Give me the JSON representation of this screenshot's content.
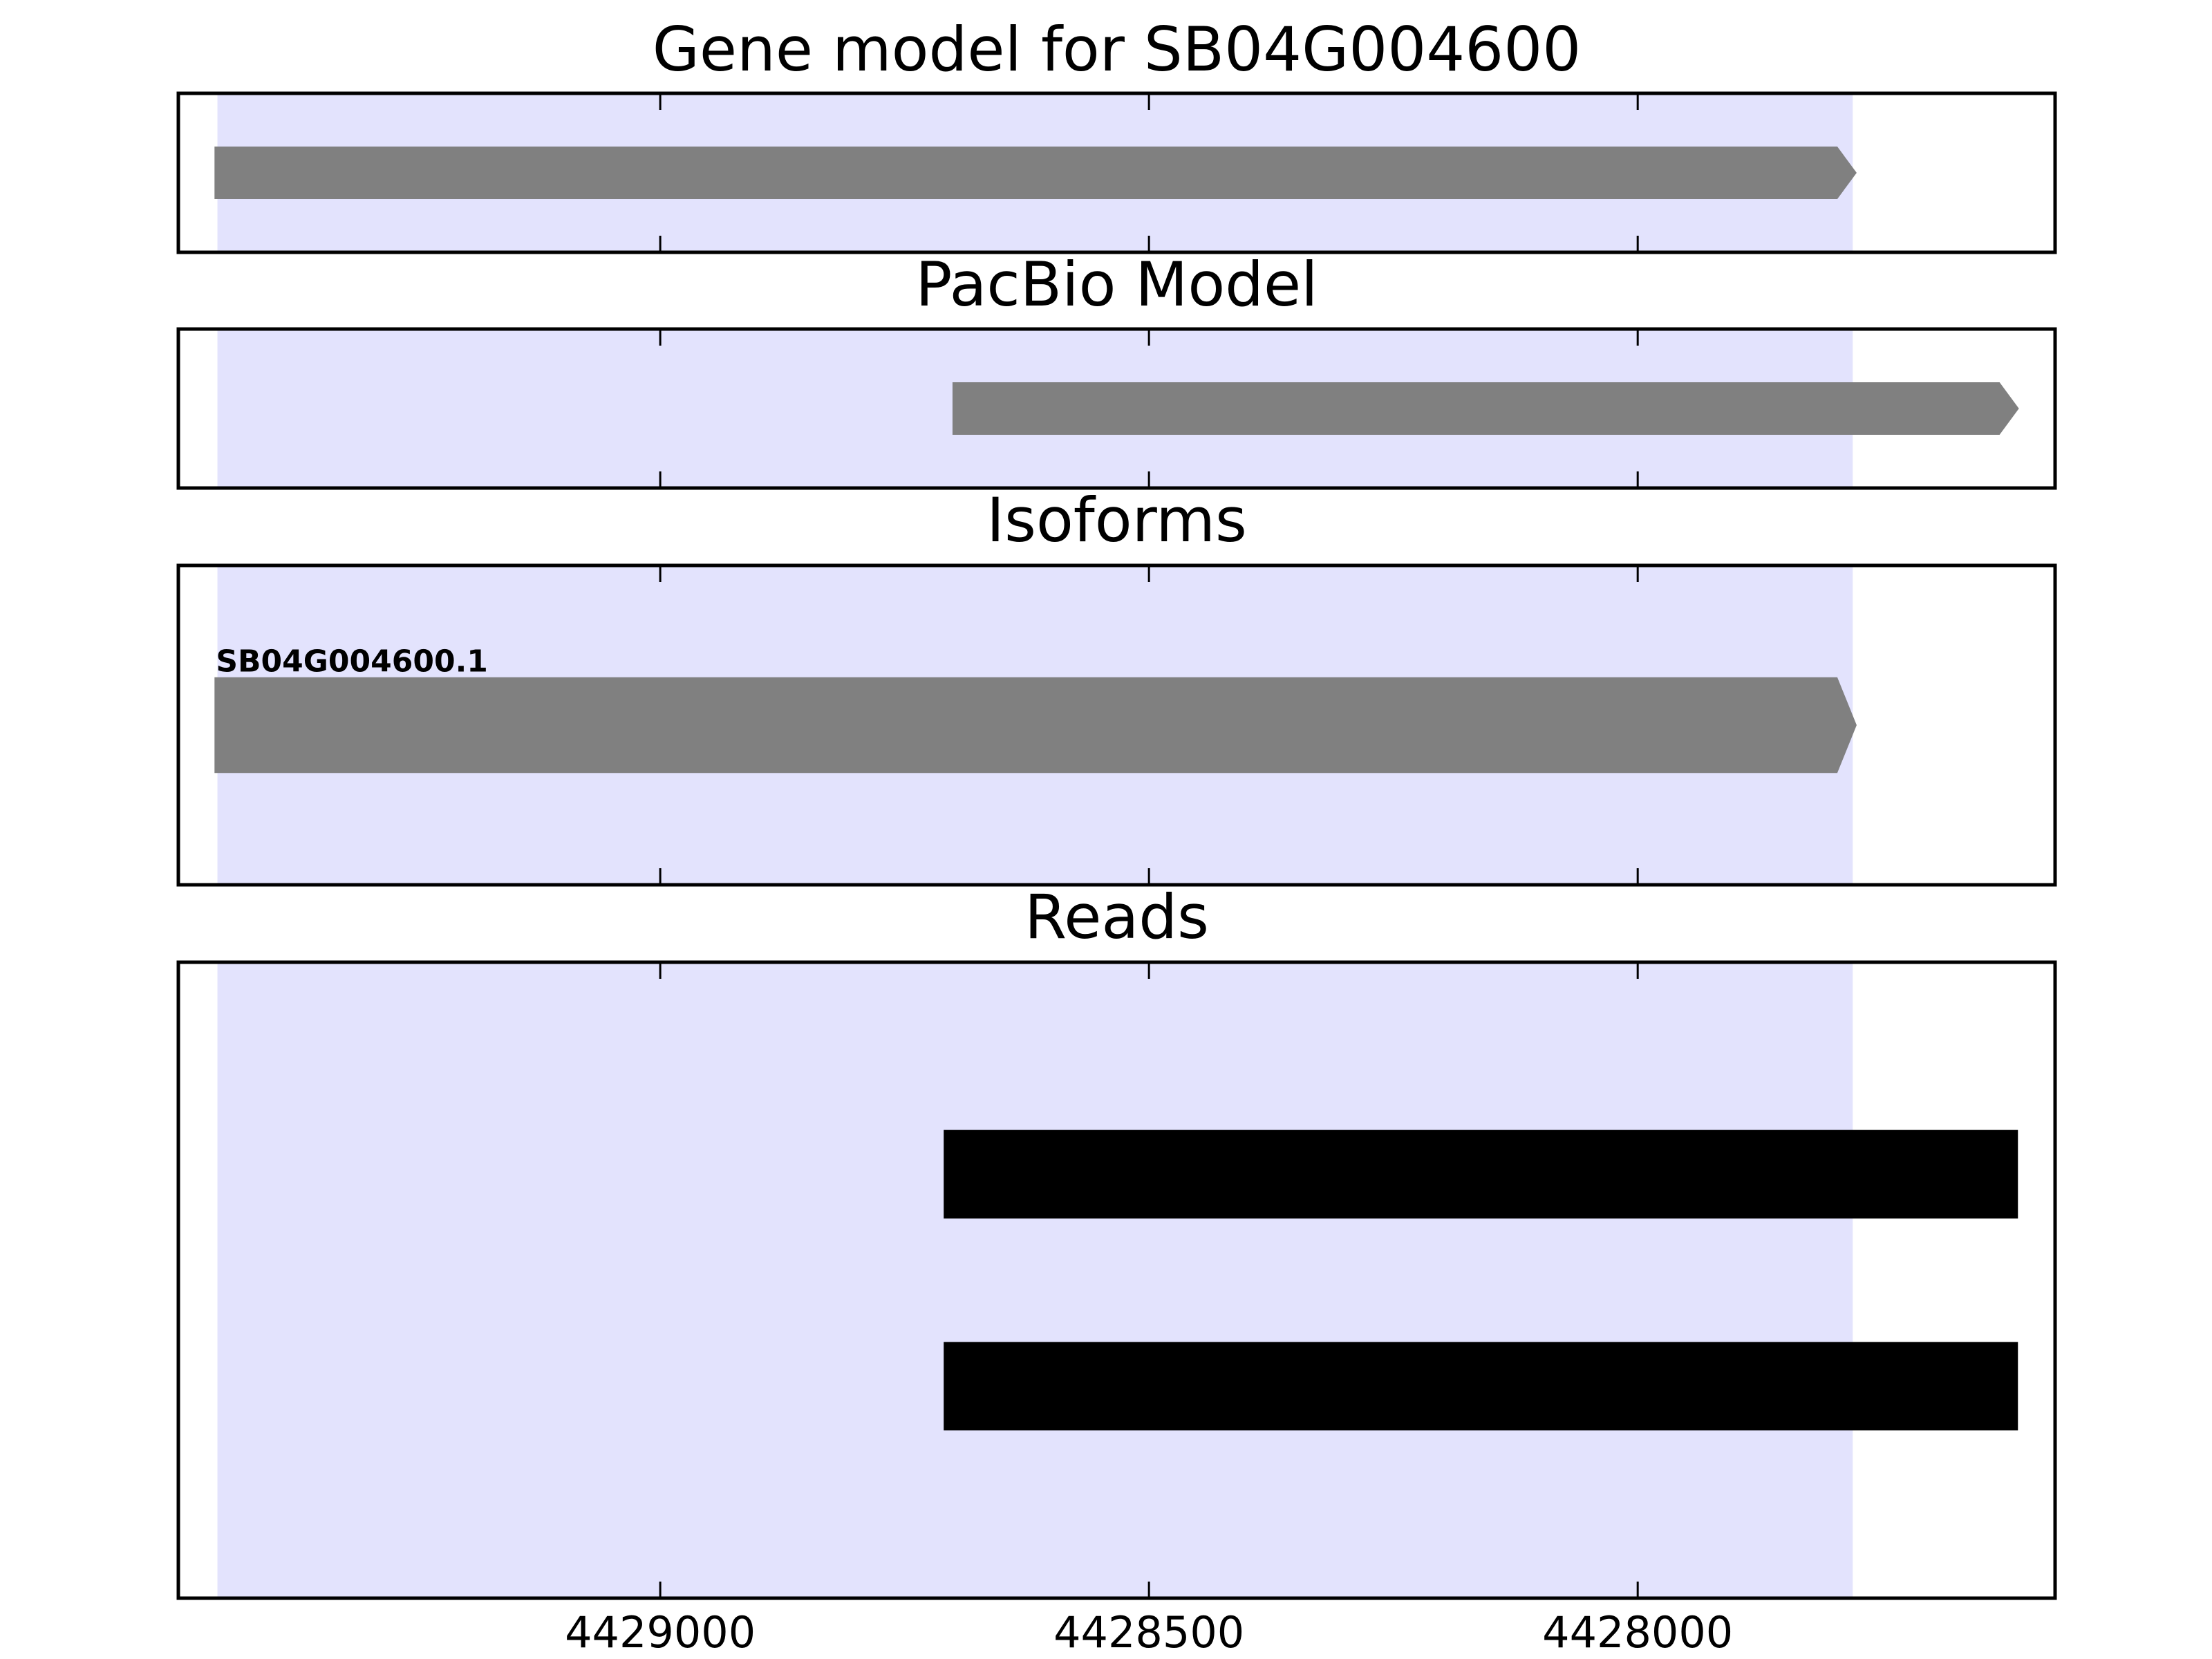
{
  "chart_data": [
    {
      "type": "gene",
      "title": "Gene model for SB04G004600",
      "xlim": [
        4429493,
        4427573
      ],
      "xticks": [
        4429000,
        4428500,
        4428000
      ],
      "tick_labels": false,
      "highlight": {
        "start": 4429453,
        "end": 4427780,
        "color": "#e3e3fd"
      },
      "color": "#808080",
      "features": [
        {
          "start": 4429456,
          "end": 4427776
        }
      ]
    },
    {
      "type": "gene",
      "title": "PacBio Model",
      "xlim": [
        4429493,
        4427573
      ],
      "xticks": [
        4429000,
        4428500,
        4428000
      ],
      "tick_labels": false,
      "highlight": {
        "start": 4429453,
        "end": 4427780,
        "color": "#e3e3fd"
      },
      "color": "#808080",
      "features": [
        {
          "start": 4428701,
          "end": 4427610
        }
      ]
    },
    {
      "type": "gene",
      "title": "Isoforms",
      "xlim": [
        4429493,
        4427573
      ],
      "xticks": [
        4429000,
        4428500,
        4428000
      ],
      "tick_labels": false,
      "highlight": {
        "start": 4429453,
        "end": 4427780,
        "color": "#e3e3fd"
      },
      "color": "#808080",
      "features": [
        {
          "label": "SB04G004600.1",
          "start": 4429456,
          "end": 4427776
        }
      ]
    },
    {
      "type": "reads",
      "title": "Reads",
      "xlim": [
        4429493,
        4427573
      ],
      "xticks": [
        4429000,
        4428500,
        4428000
      ],
      "tick_labels": true,
      "highlight": {
        "start": 4429453,
        "end": 4427780,
        "color": "#e3e3fd"
      },
      "color": "#000000",
      "features": [
        {
          "start": 4428710,
          "end": 4427611
        },
        {
          "start": 4428710,
          "end": 4427611
        }
      ]
    }
  ]
}
